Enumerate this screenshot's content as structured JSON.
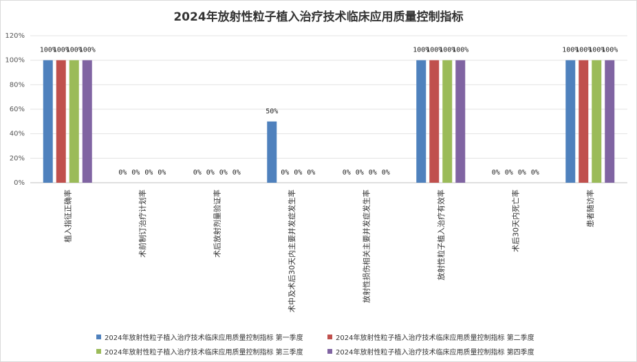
{
  "chart_data": {
    "type": "bar",
    "title": "2024年放射性粒子植入治疗技术临床应用质量控制指标",
    "categories": [
      "植入指征正确率",
      "术前制订治疗计划率",
      "术后放射剂量验证率",
      "术中及术后30天内主要并发症发生率",
      "放射性损伤相关主要并发症发生率",
      "放射性粒子植入治疗有效率",
      "术后30天内死亡率",
      "患者随访率"
    ],
    "series": [
      {
        "name": "2024年放射性粒子植入治疗技术临床应用质量控制指标  第一季度",
        "color": "#4f81bd",
        "values": [
          100,
          0,
          0,
          50,
          0,
          100,
          0,
          100
        ]
      },
      {
        "name": "2024年放射性粒子植入治疗技术临床应用质量控制指标  第二季度",
        "color": "#c0504d",
        "values": [
          100,
          0,
          0,
          0,
          0,
          100,
          0,
          100
        ]
      },
      {
        "name": "2024年放射性粒子植入治疗技术临床应用质量控制指标  第三季度",
        "color": "#9bbb59",
        "values": [
          100,
          0,
          0,
          0,
          0,
          100,
          0,
          100
        ]
      },
      {
        "name": "2024年放射性粒子植入治疗技术临床应用质量控制指标  第四季度",
        "color": "#8064a2",
        "values": [
          100,
          0,
          0,
          0,
          0,
          100,
          0,
          100
        ]
      }
    ],
    "value_suffix": "%",
    "y_ticks": [
      "0%",
      "20%",
      "40%",
      "60%",
      "80%",
      "100%",
      "120%"
    ],
    "ylim": [
      0,
      120
    ],
    "grid": true,
    "legend_position": "bottom"
  }
}
